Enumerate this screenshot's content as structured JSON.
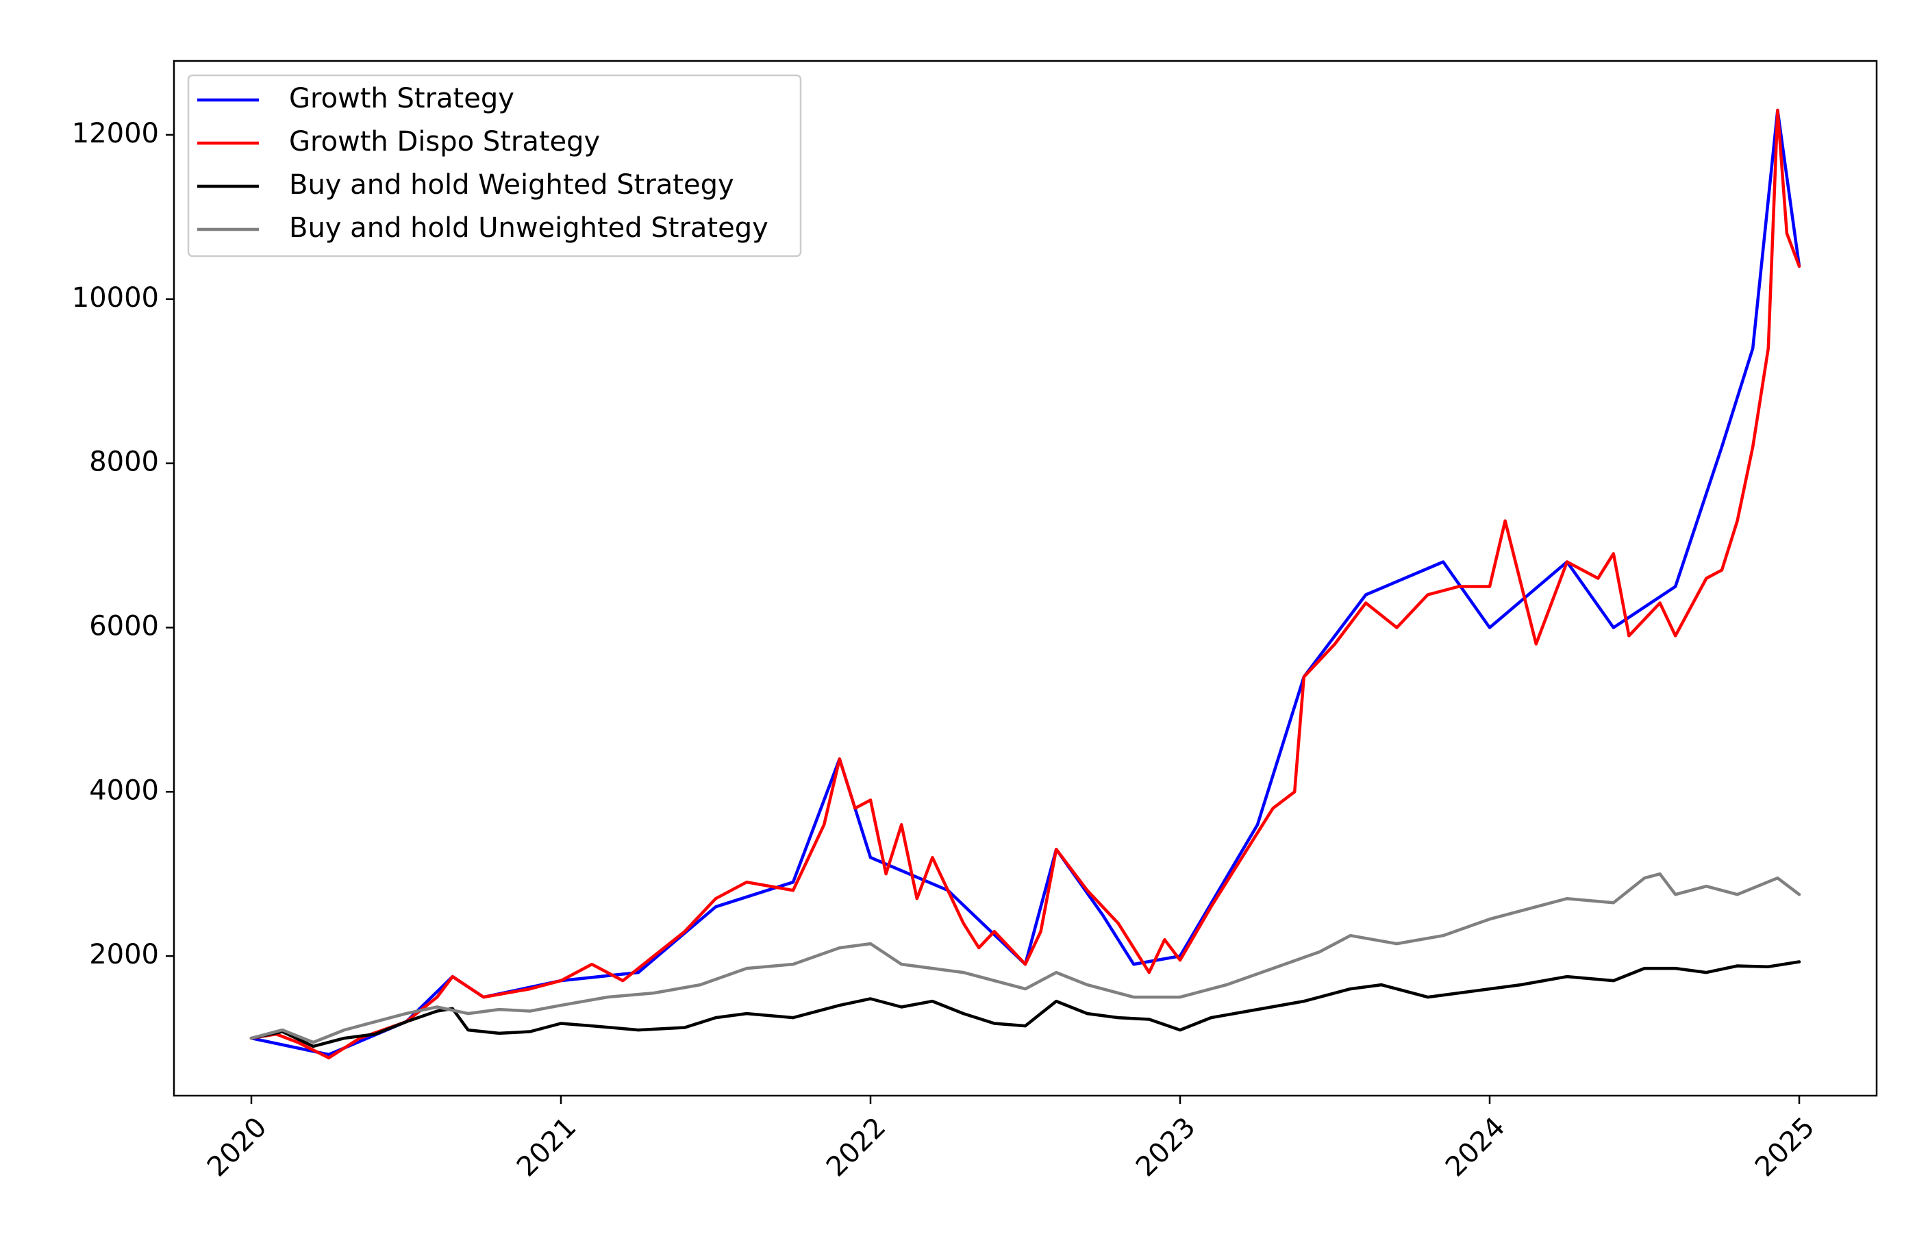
{
  "chart_data": {
    "type": "line",
    "title": "",
    "xlabel": "",
    "ylabel": "",
    "xlim": [
      2019.75,
      2025.25
    ],
    "ylim": [
      300,
      12900
    ],
    "xticks": [
      2020,
      2021,
      2022,
      2023,
      2024,
      2025
    ],
    "xtick_labels": [
      "2020",
      "2021",
      "2022",
      "2023",
      "2024",
      "2025"
    ],
    "yticks": [
      2000,
      4000,
      6000,
      8000,
      10000,
      12000
    ],
    "ytick_labels": [
      "2000",
      "4000",
      "6000",
      "8000",
      "10000",
      "12000"
    ],
    "grid": false,
    "legend_position": "top-left",
    "series": [
      {
        "name": "Growth Strategy",
        "color": "#0000ff",
        "x": [
          2020.0,
          2020.25,
          2020.5,
          2020.65,
          2020.75,
          2021.0,
          2021.25,
          2021.5,
          2021.75,
          2021.9,
          2022.0,
          2022.25,
          2022.5,
          2022.6,
          2022.75,
          2022.85,
          2023.0,
          2023.25,
          2023.4,
          2023.6,
          2023.85,
          2024.0,
          2024.25,
          2024.4,
          2024.6,
          2024.75,
          2024.85,
          2024.93,
          2025.0
        ],
        "values": [
          1000,
          800,
          1200,
          1750,
          1500,
          1700,
          1800,
          2600,
          2900,
          4400,
          3200,
          2800,
          1900,
          3300,
          2500,
          1900,
          2000,
          3600,
          5400,
          6400,
          6800,
          6000,
          6800,
          6000,
          6500,
          8200,
          9400,
          12300,
          10400
        ]
      },
      {
        "name": "Growth Dispo Strategy",
        "color": "#ff0000",
        "x": [
          2020.0,
          2020.08,
          2020.15,
          2020.25,
          2020.35,
          2020.5,
          2020.6,
          2020.65,
          2020.75,
          2020.9,
          2021.0,
          2021.1,
          2021.2,
          2021.3,
          2021.4,
          2021.5,
          2021.6,
          2021.75,
          2021.85,
          2021.9,
          2021.95,
          2022.0,
          2022.05,
          2022.1,
          2022.15,
          2022.2,
          2022.3,
          2022.35,
          2022.4,
          2022.5,
          2022.55,
          2022.6,
          2022.7,
          2022.8,
          2022.85,
          2022.9,
          2022.95,
          2023.0,
          2023.1,
          2023.2,
          2023.3,
          2023.37,
          2023.4,
          2023.5,
          2023.6,
          2023.7,
          2023.8,
          2023.9,
          2024.0,
          2024.05,
          2024.15,
          2024.25,
          2024.35,
          2024.4,
          2024.45,
          2024.55,
          2024.6,
          2024.7,
          2024.75,
          2024.8,
          2024.85,
          2024.9,
          2024.93,
          2024.96,
          2025.0
        ],
        "values": [
          1000,
          1050,
          950,
          760,
          1000,
          1200,
          1500,
          1750,
          1500,
          1600,
          1700,
          1900,
          1700,
          2000,
          2300,
          2700,
          2900,
          2800,
          3600,
          4400,
          3800,
          3900,
          3000,
          3600,
          2700,
          3200,
          2400,
          2100,
          2300,
          1900,
          2300,
          3300,
          2800,
          2400,
          2100,
          1800,
          2200,
          1950,
          2600,
          3200,
          3800,
          4000,
          5400,
          5800,
          6300,
          6000,
          6400,
          6500,
          6500,
          7300,
          5800,
          6800,
          6600,
          6900,
          5900,
          6300,
          5900,
          6600,
          6700,
          7300,
          8200,
          9400,
          12300,
          10800,
          10400
        ]
      },
      {
        "name": "Buy and hold Weighted Strategy",
        "color": "#000000",
        "x": [
          2020.0,
          2020.1,
          2020.2,
          2020.3,
          2020.4,
          2020.5,
          2020.6,
          2020.65,
          2020.7,
          2020.8,
          2020.9,
          2021.0,
          2021.1,
          2021.25,
          2021.4,
          2021.5,
          2021.6,
          2021.75,
          2021.9,
          2022.0,
          2022.1,
          2022.2,
          2022.3,
          2022.4,
          2022.5,
          2022.6,
          2022.7,
          2022.8,
          2022.9,
          2023.0,
          2023.1,
          2023.25,
          2023.4,
          2023.55,
          2023.65,
          2023.8,
          2023.9,
          2024.0,
          2024.1,
          2024.25,
          2024.4,
          2024.5,
          2024.6,
          2024.7,
          2024.8,
          2024.9,
          2025.0
        ],
        "values": [
          1000,
          1080,
          900,
          1000,
          1050,
          1200,
          1330,
          1360,
          1100,
          1060,
          1080,
          1180,
          1150,
          1100,
          1130,
          1250,
          1300,
          1250,
          1400,
          1480,
          1380,
          1450,
          1300,
          1180,
          1150,
          1450,
          1300,
          1250,
          1230,
          1100,
          1250,
          1350,
          1450,
          1600,
          1650,
          1500,
          1550,
          1600,
          1650,
          1750,
          1700,
          1850,
          1850,
          1800,
          1880,
          1870,
          1930
        ]
      },
      {
        "name": "Buy and hold Unweighted Strategy",
        "color": "#808080",
        "x": [
          2020.0,
          2020.1,
          2020.2,
          2020.3,
          2020.4,
          2020.5,
          2020.6,
          2020.7,
          2020.8,
          2020.9,
          2021.0,
          2021.15,
          2021.3,
          2021.45,
          2021.6,
          2021.75,
          2021.9,
          2022.0,
          2022.1,
          2022.2,
          2022.3,
          2022.4,
          2022.5,
          2022.6,
          2022.7,
          2022.85,
          2023.0,
          2023.15,
          2023.3,
          2023.45,
          2023.55,
          2023.7,
          2023.85,
          2024.0,
          2024.1,
          2024.25,
          2024.4,
          2024.5,
          2024.55,
          2024.6,
          2024.7,
          2024.8,
          2024.93,
          2025.0
        ],
        "values": [
          1000,
          1100,
          950,
          1100,
          1200,
          1300,
          1380,
          1300,
          1350,
          1330,
          1400,
          1500,
          1550,
          1650,
          1850,
          1900,
          2100,
          2150,
          1900,
          1850,
          1800,
          1700,
          1600,
          1800,
          1650,
          1500,
          1500,
          1650,
          1850,
          2050,
          2250,
          2150,
          2250,
          2450,
          2550,
          2700,
          2650,
          2950,
          3000,
          2750,
          2850,
          2750,
          2950,
          2750
        ]
      }
    ]
  }
}
